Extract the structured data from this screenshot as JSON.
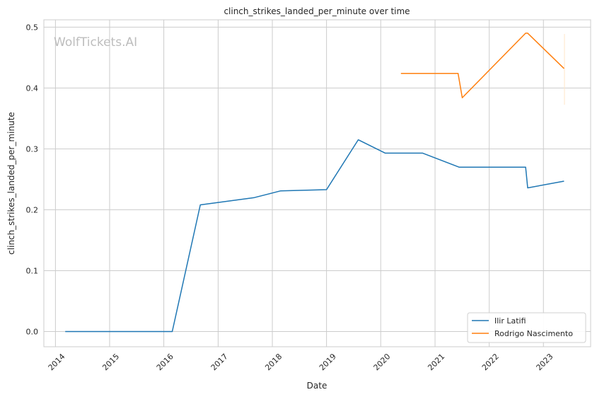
{
  "chart_data": {
    "type": "line",
    "title": "clinch_strikes_landed_per_minute over time",
    "xlabel": "Date",
    "ylabel": "clinch_strikes_landed_per_minute",
    "watermark": "WolfTickets.AI",
    "xlim": [
      "2013-10-15",
      "2023-11-15"
    ],
    "ylim": [
      -0.025,
      0.512
    ],
    "x_ticks": [
      "2014",
      "2015",
      "2016",
      "2017",
      "2018",
      "2019",
      "2020",
      "2021",
      "2022",
      "2023"
    ],
    "y_ticks": [
      "0.0",
      "0.1",
      "0.2",
      "0.3",
      "0.4",
      "0.5"
    ],
    "y_tick_values": [
      0.0,
      0.1,
      0.2,
      0.3,
      0.4,
      0.5
    ],
    "grid": true,
    "legend_position": "bottom-right",
    "series": [
      {
        "name": "Ilir Latifi",
        "color": "#1f77b4",
        "points": [
          {
            "x": "2014-03-08",
            "y": 0.0
          },
          {
            "x": "2016-02-27",
            "y": 0.0
          },
          {
            "x": "2016-09-03",
            "y": 0.208
          },
          {
            "x": "2017-09-02",
            "y": 0.22
          },
          {
            "x": "2018-02-24",
            "y": 0.231
          },
          {
            "x": "2019-01-01",
            "y": 0.233
          },
          {
            "x": "2019-08-03",
            "y": 0.315
          },
          {
            "x": "2020-02-01",
            "y": 0.293
          },
          {
            "x": "2020-10-10",
            "y": 0.293
          },
          {
            "x": "2021-06-12",
            "y": 0.27
          },
          {
            "x": "2022-09-03",
            "y": 0.27
          },
          {
            "x": "2022-09-17",
            "y": 0.236
          },
          {
            "x": "2023-05-20",
            "y": 0.247
          }
        ]
      },
      {
        "name": "Rodrigo Nascimento",
        "color": "#ff7f0e",
        "points": [
          {
            "x": "2020-05-16",
            "y": 0.424
          },
          {
            "x": "2021-06-05",
            "y": 0.424
          },
          {
            "x": "2021-07-03",
            "y": 0.384
          },
          {
            "x": "2022-09-03",
            "y": 0.49
          },
          {
            "x": "2022-09-17",
            "y": 0.49
          },
          {
            "x": "2023-05-20",
            "y": 0.432
          }
        ]
      }
    ]
  }
}
